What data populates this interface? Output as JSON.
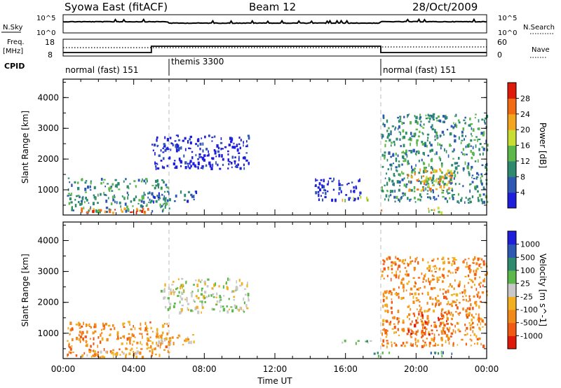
{
  "header": {
    "station": "Syowa East (fitACF)",
    "beam": "Beam 12",
    "date": "28/Oct/2009"
  },
  "strip": {
    "nsky_label": "N.Sky",
    "nsky_ticks": [
      "10^5",
      "10^0"
    ],
    "nsearch_label": "N.Search",
    "nsearch_ticks": [
      "10^5",
      "10^0"
    ],
    "freq_label_line1": "Freq.",
    "freq_label_line2": "[MHz]",
    "freq_ticks": [
      "18",
      "8"
    ],
    "nave_label": "Nave",
    "nave_ticks": [
      "60",
      "0"
    ],
    "cpid_label": "CPID",
    "cpid_segments": [
      {
        "start_hour": 0,
        "label": "normal (fast) 151"
      },
      {
        "start_hour": 6,
        "label": "themis 3300"
      },
      {
        "start_hour": 18,
        "label": "normal (fast) 151"
      }
    ]
  },
  "chart_data": [
    {
      "type": "heatmap",
      "quantity": "Power",
      "ylabel": "Slant Range [km]",
      "yticks": [
        1000,
        2000,
        3000,
        4000
      ],
      "ylim": [
        180,
        4600
      ],
      "xlim": [
        0,
        24
      ],
      "colorbar_label": "Power [dB]",
      "colorbar_ticks": [
        "4",
        "8",
        "12",
        "16",
        "20",
        "24",
        "28"
      ],
      "colors": [
        "#1e1edc",
        "#2d58b4",
        "#2e8a6e",
        "#5db84b",
        "#c8dc32",
        "#f2a51e",
        "#f26a14",
        "#e01a0a"
      ],
      "regions": [
        {
          "x": [
            0.2,
            6.0
          ],
          "y": [
            300,
            1400
          ],
          "level": 2
        },
        {
          "x": [
            1.0,
            5.0
          ],
          "y": [
            250,
            450
          ],
          "level": 6
        },
        {
          "x": [
            5.0,
            7.5
          ],
          "y": [
            650,
            1000
          ],
          "level": 1
        },
        {
          "x": [
            5.0,
            10.5
          ],
          "y": [
            1700,
            2800
          ],
          "level": 0
        },
        {
          "x": [
            14.2,
            17.0
          ],
          "y": [
            700,
            1400
          ],
          "level": 0
        },
        {
          "x": [
            15.5,
            17.5
          ],
          "y": [
            700,
            800
          ],
          "level": 4
        },
        {
          "x": [
            17.5,
            18.5
          ],
          "y": [
            300,
            420
          ],
          "level": 5
        },
        {
          "x": [
            18.0,
            24.0
          ],
          "y": [
            600,
            3500
          ],
          "level": 2
        },
        {
          "x": [
            19.5,
            22.0
          ],
          "y": [
            1000,
            1700
          ],
          "level": 5
        },
        {
          "x": [
            20.5,
            22.0
          ],
          "y": [
            300,
            450
          ],
          "level": 4
        }
      ]
    },
    {
      "type": "heatmap",
      "quantity": "Velocity",
      "xlabel": "Time UT",
      "ylabel": "Slant Range [km]",
      "xticks": [
        "00:00",
        "04:00",
        "08:00",
        "12:00",
        "16:00",
        "20:00",
        "00:00"
      ],
      "yticks": [
        1000,
        2000,
        3000,
        4000
      ],
      "ylim": [
        180,
        4600
      ],
      "xlim": [
        0,
        24
      ],
      "colorbar_label": "Velocity [m s^-1]",
      "colorbar_ticks": [
        "1000",
        "500",
        "100",
        "25",
        "-25",
        "-100",
        "-500",
        "-1000"
      ],
      "colors": [
        "#1e1edc",
        "#2d58b4",
        "#2e8a6e",
        "#5db84b",
        "#c8c8c8",
        "#f2b020",
        "#f28a1a",
        "#f25a14",
        "#e01a0a"
      ],
      "regions": [
        {
          "x": [
            0.2,
            6.0
          ],
          "y": [
            300,
            1400
          ],
          "level": 6
        },
        {
          "x": [
            1.0,
            5.0
          ],
          "y": [
            250,
            450
          ],
          "level": 5
        },
        {
          "x": [
            5.0,
            7.5
          ],
          "y": [
            650,
            1000
          ],
          "level": 5
        },
        {
          "x": [
            5.5,
            10.5
          ],
          "y": [
            1700,
            2800
          ],
          "level": 4
        },
        {
          "x": [
            15.5,
            17.5
          ],
          "y": [
            700,
            800
          ],
          "level": 3
        },
        {
          "x": [
            17.5,
            18.5
          ],
          "y": [
            300,
            420
          ],
          "level": 3
        },
        {
          "x": [
            18.0,
            24.0
          ],
          "y": [
            600,
            3500
          ],
          "level": 6
        },
        {
          "x": [
            19.5,
            22.0
          ],
          "y": [
            1000,
            1700
          ],
          "level": 7
        },
        {
          "x": [
            20.5,
            22.0
          ],
          "y": [
            300,
            450
          ],
          "level": 2
        }
      ]
    }
  ]
}
